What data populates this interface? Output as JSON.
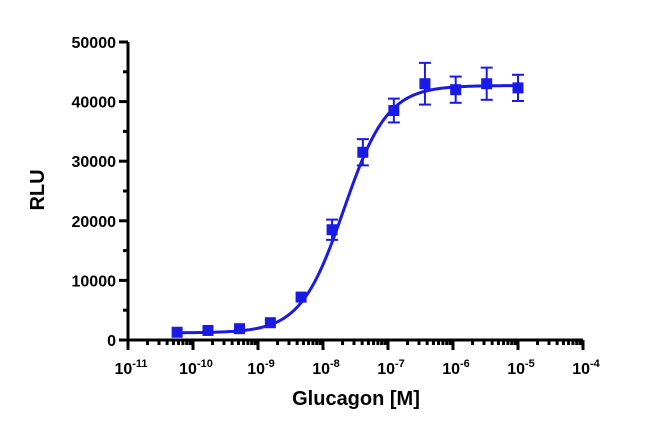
{
  "chart_data": {
    "type": "scatter",
    "xlabel": "Glucagon [M]",
    "ylabel": "RLU",
    "xscale": "log",
    "xlim": [
      1e-11,
      0.0001
    ],
    "ylim": [
      0,
      50000
    ],
    "x_tick_labels": [
      {
        "base": "10",
        "exp": "-11"
      },
      {
        "base": "10",
        "exp": "-10"
      },
      {
        "base": "10",
        "exp": "-9"
      },
      {
        "base": "10",
        "exp": "-8"
      },
      {
        "base": "10",
        "exp": "-7"
      },
      {
        "base": "10",
        "exp": "-6"
      },
      {
        "base": "10",
        "exp": "-5"
      },
      {
        "base": "10",
        "exp": "-4"
      }
    ],
    "y_tick_labels": [
      "0",
      "10000",
      "20000",
      "30000",
      "40000",
      "50000"
    ],
    "grid": false,
    "color": "#1a1ae6",
    "series": [
      {
        "x": [
          5.7e-11,
          1.7e-10,
          5.2e-10,
          1.55e-09,
          4.6e-09,
          1.38e-08,
          4.1e-08,
          1.23e-07,
          3.7e-07,
          1.1e-06,
          3.3e-06,
          1e-05
        ],
        "y": [
          1300,
          1600,
          1900,
          2900,
          7200,
          18500,
          31500,
          38500,
          43000,
          42000,
          43000,
          42300
        ],
        "error": [
          0,
          0,
          0,
          0,
          0,
          1700,
          2200,
          2000,
          3500,
          2200,
          2700,
          2200
        ]
      }
    ],
    "fit": {
      "type": "sigmoidal dose-response",
      "bottom": 1200,
      "top": 42700,
      "ec50": 2.1e-08,
      "hill": 1.3
    }
  }
}
